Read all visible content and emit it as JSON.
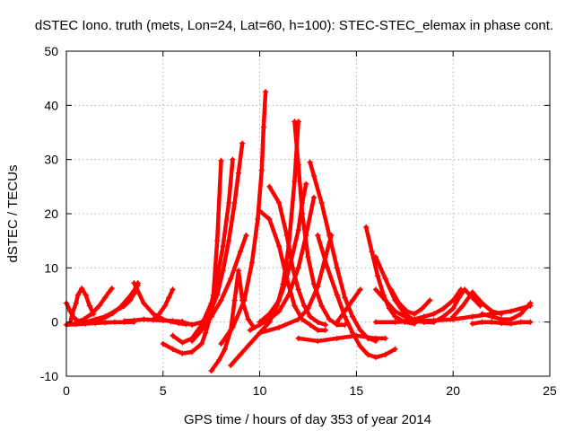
{
  "chart_data": {
    "type": "scatter",
    "title": "dSTEC Iono. truth (mets, Lon=24, Lat=60, h=100): STEC-STEC_elemax in phase cont.",
    "xlabel": "GPS time / hours of day 353 of year 2014",
    "ylabel": "dSTEC  / TECUs",
    "xlim": [
      0,
      25
    ],
    "ylim": [
      -10,
      50
    ],
    "xticks": [
      "0",
      "5",
      "10",
      "15",
      "20",
      "25"
    ],
    "yticks": [
      "-10",
      "0",
      "10",
      "20",
      "30",
      "40",
      "50"
    ],
    "grid": true,
    "marker": "+",
    "color": "#ff0000",
    "series": [
      {
        "x": [
          0.0,
          0.2,
          0.4,
          0.6,
          0.8,
          1.0
        ],
        "y": [
          3.5,
          2.0,
          0.8,
          0.2,
          0.0,
          0.0
        ]
      },
      {
        "x": [
          0.0,
          0.5,
          1.0,
          1.5,
          2.0,
          2.5,
          3.0,
          3.5
        ],
        "y": [
          -0.5,
          -0.4,
          -0.3,
          -0.2,
          -0.1,
          0.0,
          0.0,
          0.0
        ]
      },
      {
        "x": [
          0.2,
          0.3,
          0.5,
          0.6,
          0.8,
          1.0,
          1.2,
          1.4
        ],
        "y": [
          -0.2,
          1.5,
          3.5,
          5.0,
          6.2,
          5.0,
          3.0,
          1.5
        ]
      },
      {
        "x": [
          0.5,
          0.9,
          1.3,
          1.7,
          2.0,
          2.2,
          2.35
        ],
        "y": [
          0.0,
          0.5,
          1.5,
          3.0,
          4.5,
          5.5,
          6.2
        ]
      },
      {
        "x": [
          1.2,
          1.6,
          2.0,
          2.4,
          2.8,
          3.2,
          3.5,
          3.7
        ],
        "y": [
          0.0,
          0.3,
          0.8,
          1.6,
          2.8,
          4.4,
          5.8,
          7.2
        ]
      },
      {
        "x": [
          1.0,
          1.5,
          2.0,
          2.5,
          3.0,
          3.3,
          3.5,
          3.7
        ],
        "y": [
          0.0,
          0.5,
          1.0,
          2.0,
          3.0,
          4.0,
          5.2,
          6.8
        ]
      },
      {
        "x": [
          3.5,
          4.0,
          4.5,
          5.0,
          5.4,
          5.8,
          6.2
        ],
        "y": [
          7.2,
          3.5,
          1.5,
          0.5,
          0.1,
          -0.2,
          -0.4
        ]
      },
      {
        "x": [
          3.0,
          3.5,
          4.0,
          4.5,
          5.0,
          5.5,
          6.0
        ],
        "y": [
          0.2,
          0.3,
          0.5,
          0.4,
          0.3,
          0.2,
          0.1
        ]
      },
      {
        "x": [
          4.5,
          4.8,
          5.1,
          5.3,
          5.5
        ],
        "y": [
          0.5,
          1.5,
          3.0,
          4.5,
          6.0
        ]
      },
      {
        "x": [
          5.0,
          5.5,
          6.0,
          6.5,
          7.0,
          7.2,
          7.4,
          7.6,
          7.8,
          8.0
        ],
        "y": [
          -4.0,
          -5.0,
          -5.8,
          -5.5,
          -4.0,
          -2.0,
          0.5,
          5.0,
          15.0,
          29.8
        ]
      },
      {
        "x": [
          5.5,
          6.0,
          6.5,
          7.0,
          7.5,
          7.8,
          8.1,
          8.4,
          8.6
        ],
        "y": [
          -2.5,
          -3.8,
          -3.0,
          -0.5,
          3.5,
          8.0,
          14.0,
          22.0,
          30.0
        ]
      },
      {
        "x": [
          6.5,
          7.0,
          7.4,
          7.8,
          8.1,
          8.4,
          8.7,
          8.9,
          9.1
        ],
        "y": [
          -3.5,
          -1.5,
          1.5,
          5.0,
          9.5,
          15.0,
          22.0,
          27.5,
          33.0
        ]
      },
      {
        "x": [
          7.5,
          7.9,
          8.2,
          8.5,
          8.7,
          8.9,
          9.1,
          9.4,
          9.7
        ],
        "y": [
          -9.0,
          -7.0,
          -5.0,
          -1.5,
          4.0,
          9.5,
          4.0,
          0.5,
          -1.0
        ]
      },
      {
        "x": [
          6.0,
          6.5,
          7.0,
          7.5,
          8.0,
          8.5,
          9.0,
          9.3
        ],
        "y": [
          0.0,
          -0.5,
          0.0,
          1.0,
          4.0,
          8.0,
          13.0,
          16.0
        ]
      },
      {
        "x": [
          8.0,
          8.6,
          9.2,
          9.6,
          9.9,
          10.1,
          10.2,
          10.3
        ],
        "y": [
          -4.0,
          -1.0,
          4.0,
          11.0,
          19.0,
          28.0,
          36.0,
          42.5
        ]
      },
      {
        "x": [
          8.5,
          9.0,
          9.5,
          10.0,
          10.5,
          10.9,
          11.2,
          11.5,
          11.8,
          12.0
        ],
        "y": [
          -8.0,
          -6.0,
          -4.0,
          -2.0,
          0.0,
          3.0,
          7.0,
          14.0,
          26.0,
          37.0
        ]
      },
      {
        "x": [
          10.0,
          10.5,
          11.0,
          11.4,
          11.8,
          12.2,
          12.6,
          13.0,
          13.4
        ],
        "y": [
          20.5,
          19.0,
          14.0,
          8.0,
          3.0,
          0.5,
          -0.5,
          -1.5,
          -1.5
        ]
      },
      {
        "x": [
          10.0,
          10.5,
          11.0,
          11.3,
          11.6,
          12.0,
          12.2,
          12.4
        ],
        "y": [
          0.0,
          1.5,
          4.0,
          7.0,
          11.0,
          17.0,
          22.0,
          25.5
        ]
      },
      {
        "x": [
          9.5,
          10.0,
          10.5,
          11.0,
          11.5,
          12.0,
          12.4,
          12.8
        ],
        "y": [
          -1.5,
          -0.5,
          0.5,
          2.0,
          5.0,
          10.0,
          16.0,
          23.0
        ]
      },
      {
        "x": [
          10.5,
          11.0,
          11.4,
          11.7,
          12.0,
          12.3,
          12.6,
          13.0,
          13.4
        ],
        "y": [
          25.0,
          22.0,
          16.0,
          10.0,
          6.0,
          3.0,
          1.0,
          0.0,
          -0.5
        ]
      },
      {
        "x": [
          10.0,
          11.0,
          12.0,
          12.5,
          13.0,
          13.4,
          13.7
        ],
        "y": [
          -2.0,
          -1.0,
          0.5,
          2.5,
          6.5,
          12.0,
          16.0
        ]
      },
      {
        "x": [
          11.8,
          12.0,
          12.2,
          12.5,
          12.8,
          13.2,
          13.6,
          14.0,
          14.4
        ],
        "y": [
          37.0,
          29.0,
          20.0,
          12.0,
          7.0,
          3.0,
          0.5,
          -0.5,
          -0.5
        ]
      },
      {
        "x": [
          12.6,
          12.8,
          13.2,
          13.6,
          14.0,
          14.4,
          14.8,
          15.2,
          15.6,
          16.0
        ],
        "y": [
          29.5,
          27.0,
          22.0,
          16.0,
          10.0,
          4.5,
          1.0,
          -1.5,
          -3.0,
          -3.5
        ]
      },
      {
        "x": [
          13.0,
          13.5,
          14.0,
          14.4,
          14.8,
          15.2,
          15.6,
          16.0,
          16.5,
          17.0
        ],
        "y": [
          16.0,
          10.0,
          5.0,
          1.0,
          -2.0,
          -4.5,
          -6.0,
          -6.5,
          -6.0,
          -5.0
        ]
      },
      {
        "x": [
          12.0,
          13.0,
          14.0,
          15.0,
          16.0,
          16.5
        ],
        "y": [
          -3.0,
          -3.5,
          -3.0,
          -2.5,
          -3.0,
          -3.0
        ]
      },
      {
        "x": [
          14.0,
          14.4,
          14.8,
          15.2
        ],
        "y": [
          0.0,
          2.0,
          4.0,
          6.0
        ]
      },
      {
        "x": [
          15.5,
          15.8,
          16.1,
          16.4,
          16.7,
          17.0,
          17.5,
          18.0
        ],
        "y": [
          17.5,
          13.0,
          8.5,
          5.0,
          2.5,
          1.0,
          0.0,
          -0.3
        ]
      },
      {
        "x": [
          16.0,
          16.5,
          17.0,
          17.5,
          18.0,
          18.5,
          19.0
        ],
        "y": [
          12.0,
          8.0,
          4.0,
          1.5,
          0.3,
          0.0,
          0.0
        ]
      },
      {
        "x": [
          16.0,
          16.5,
          17.0,
          17.5,
          18.0,
          18.5
        ],
        "y": [
          6.0,
          4.0,
          2.0,
          1.0,
          0.2,
          0.0
        ]
      },
      {
        "x": [
          16.8,
          17.2,
          17.6,
          18.0,
          18.4,
          18.8
        ],
        "y": [
          6.0,
          3.5,
          2.0,
          1.5,
          2.5,
          4.0
        ]
      },
      {
        "x": [
          16.0,
          17.0,
          18.0,
          19.0,
          20.0,
          21.0,
          22.0,
          23.0,
          24.0
        ],
        "y": [
          0.0,
          0.0,
          0.2,
          0.3,
          0.5,
          1.0,
          1.5,
          2.0,
          3.0
        ]
      },
      {
        "x": [
          17.5,
          18.0,
          18.5,
          19.0,
          19.5,
          20.0,
          20.4
        ],
        "y": [
          0.2,
          0.5,
          1.0,
          1.5,
          2.5,
          4.0,
          6.0
        ]
      },
      {
        "x": [
          19.0,
          19.5,
          20.0,
          20.3,
          20.6,
          21.0,
          21.4
        ],
        "y": [
          0.0,
          1.0,
          2.5,
          4.5,
          6.0,
          4.5,
          3.0
        ]
      },
      {
        "x": [
          20.0,
          20.5,
          21.0,
          21.5,
          22.0,
          22.5
        ],
        "y": [
          1.0,
          3.0,
          5.5,
          3.5,
          2.0,
          1.5
        ]
      },
      {
        "x": [
          21.5,
          22.0,
          22.5,
          23.0,
          23.5,
          24.0
        ],
        "y": [
          1.5,
          1.0,
          0.5,
          0.5,
          1.5,
          3.5
        ]
      },
      {
        "x": [
          21.0,
          21.5,
          22.0,
          22.5,
          23.0,
          23.5,
          24.0
        ],
        "y": [
          -0.3,
          0.0,
          0.0,
          -0.2,
          -0.3,
          0.0,
          0.0
        ]
      }
    ]
  }
}
